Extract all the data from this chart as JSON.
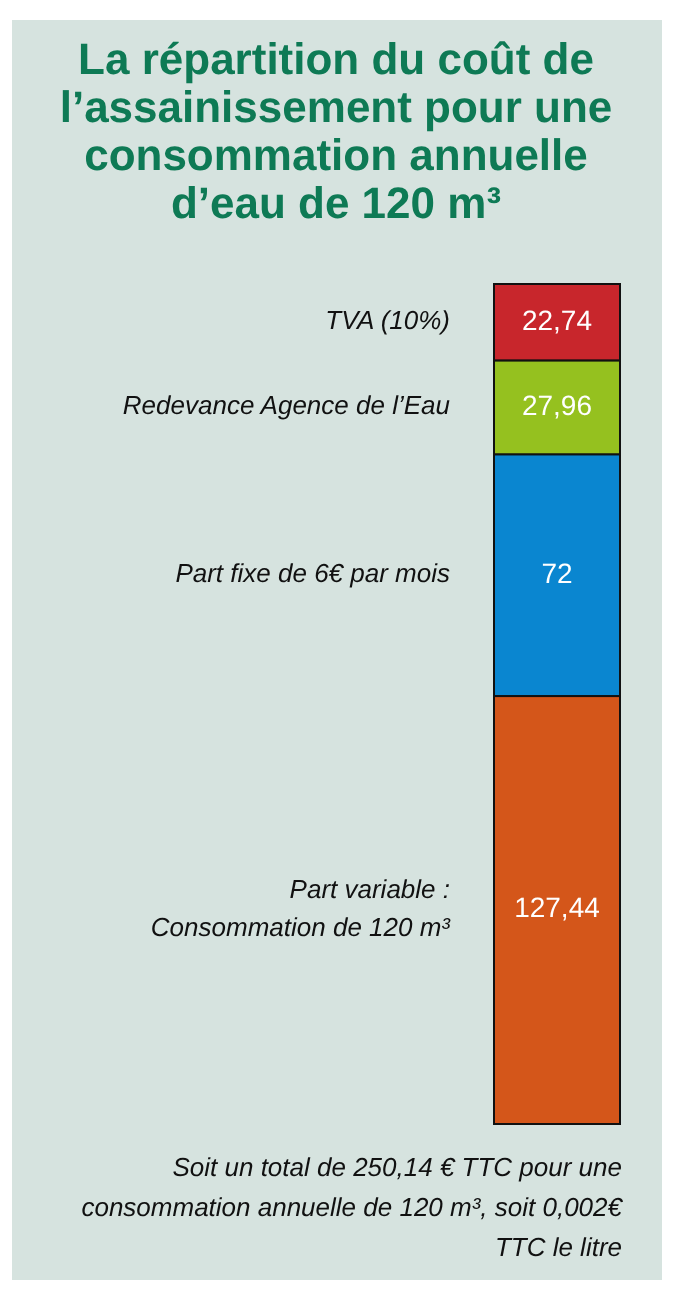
{
  "chart_data": {
    "type": "bar",
    "title": "La répartition du coût de l’assainissement pour une consommation annuelle d’eau de 120 m³",
    "stacked": true,
    "categories": [
      null
    ],
    "series": [
      {
        "name": "Part variable : Consommation de 120 m³",
        "color": "#d4561a",
        "values": [
          127.44
        ],
        "value_labels": [
          "127,44"
        ]
      },
      {
        "name": "Part fixe de 6€ par mois",
        "color": "#0a86d0",
        "values": [
          72
        ],
        "value_labels": [
          "72"
        ]
      },
      {
        "name": "Redevance Agence de l’Eau",
        "color": "#95c11f",
        "values": [
          27.96
        ],
        "value_labels": [
          "27,96"
        ]
      },
      {
        "name": "TVA (10%)",
        "color": "#c8262c",
        "values": [
          22.74
        ],
        "value_labels": [
          "22,74"
        ]
      }
    ],
    "annotations": [
      "Soit un total de 250,14 € TTC pour une consommation annuelle de 120 m³, soit 0,002€ TTC le litre"
    ]
  }
}
